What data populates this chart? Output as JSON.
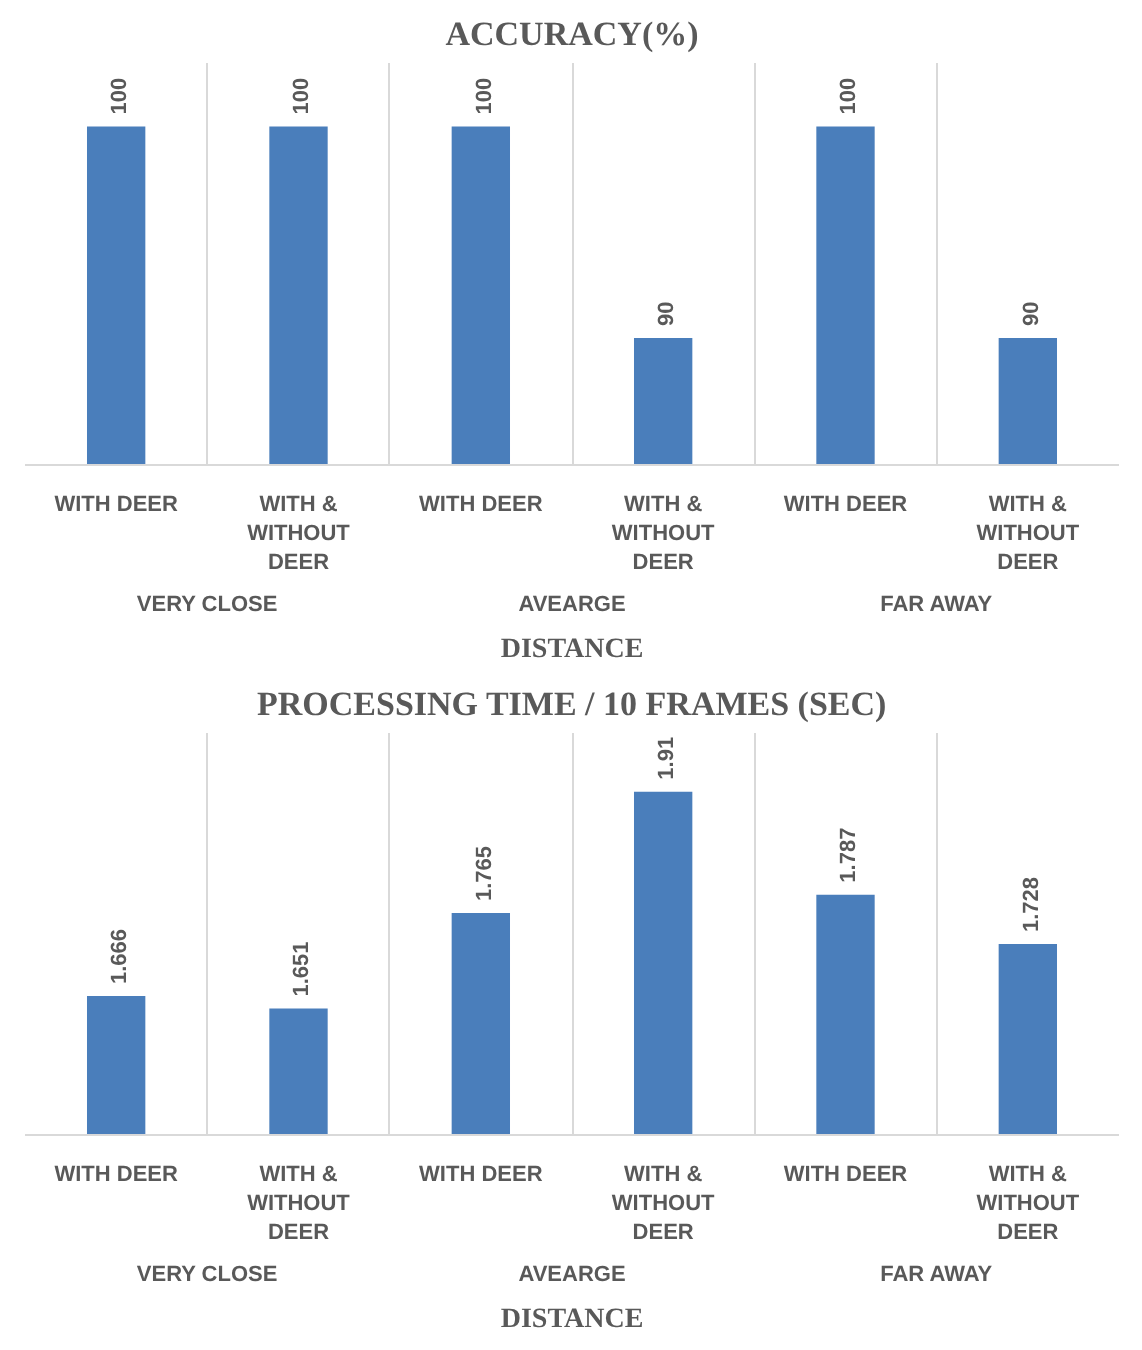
{
  "chart_data": [
    {
      "type": "bar",
      "title": "ACCURACY(%)",
      "xlabel": "DISTANCE",
      "categories": [
        "WITH DEER",
        "WITH & WITHOUT DEER",
        "WITH DEER",
        "WITH & WITHOUT DEER",
        "WITH DEER",
        "WITH & WITHOUT DEER"
      ],
      "values": [
        100,
        100,
        100,
        90,
        100,
        90
      ],
      "color": "#4a7ebb",
      "ylim": [
        84,
        103
      ],
      "data_labels": true,
      "tick_labels": "x",
      "grid": "x",
      "annotations": [
        "VERY CLOSE",
        "AVEARGE",
        "FAR AWAY"
      ]
    },
    {
      "type": "bar",
      "title": "PROCESSING TIME / 10 FRAMES (SEC)",
      "xlabel": "DISTANCE",
      "categories": [
        "WITH DEER",
        "WITH & WITHOUT DEER",
        "WITH DEER",
        "WITH & WITHOUT DEER",
        "WITH DEER",
        "WITH & WITHOUT DEER"
      ],
      "values": [
        1.666,
        1.651,
        1.765,
        1.91,
        1.787,
        1.728
      ],
      "color": "#4a7ebb",
      "ylim": [
        1.5,
        1.98
      ],
      "data_labels": true,
      "tick_labels": "x",
      "grid": "x",
      "annotations": [
        "VERY CLOSE",
        "AVEARGE",
        "FAR AWAY"
      ]
    }
  ]
}
